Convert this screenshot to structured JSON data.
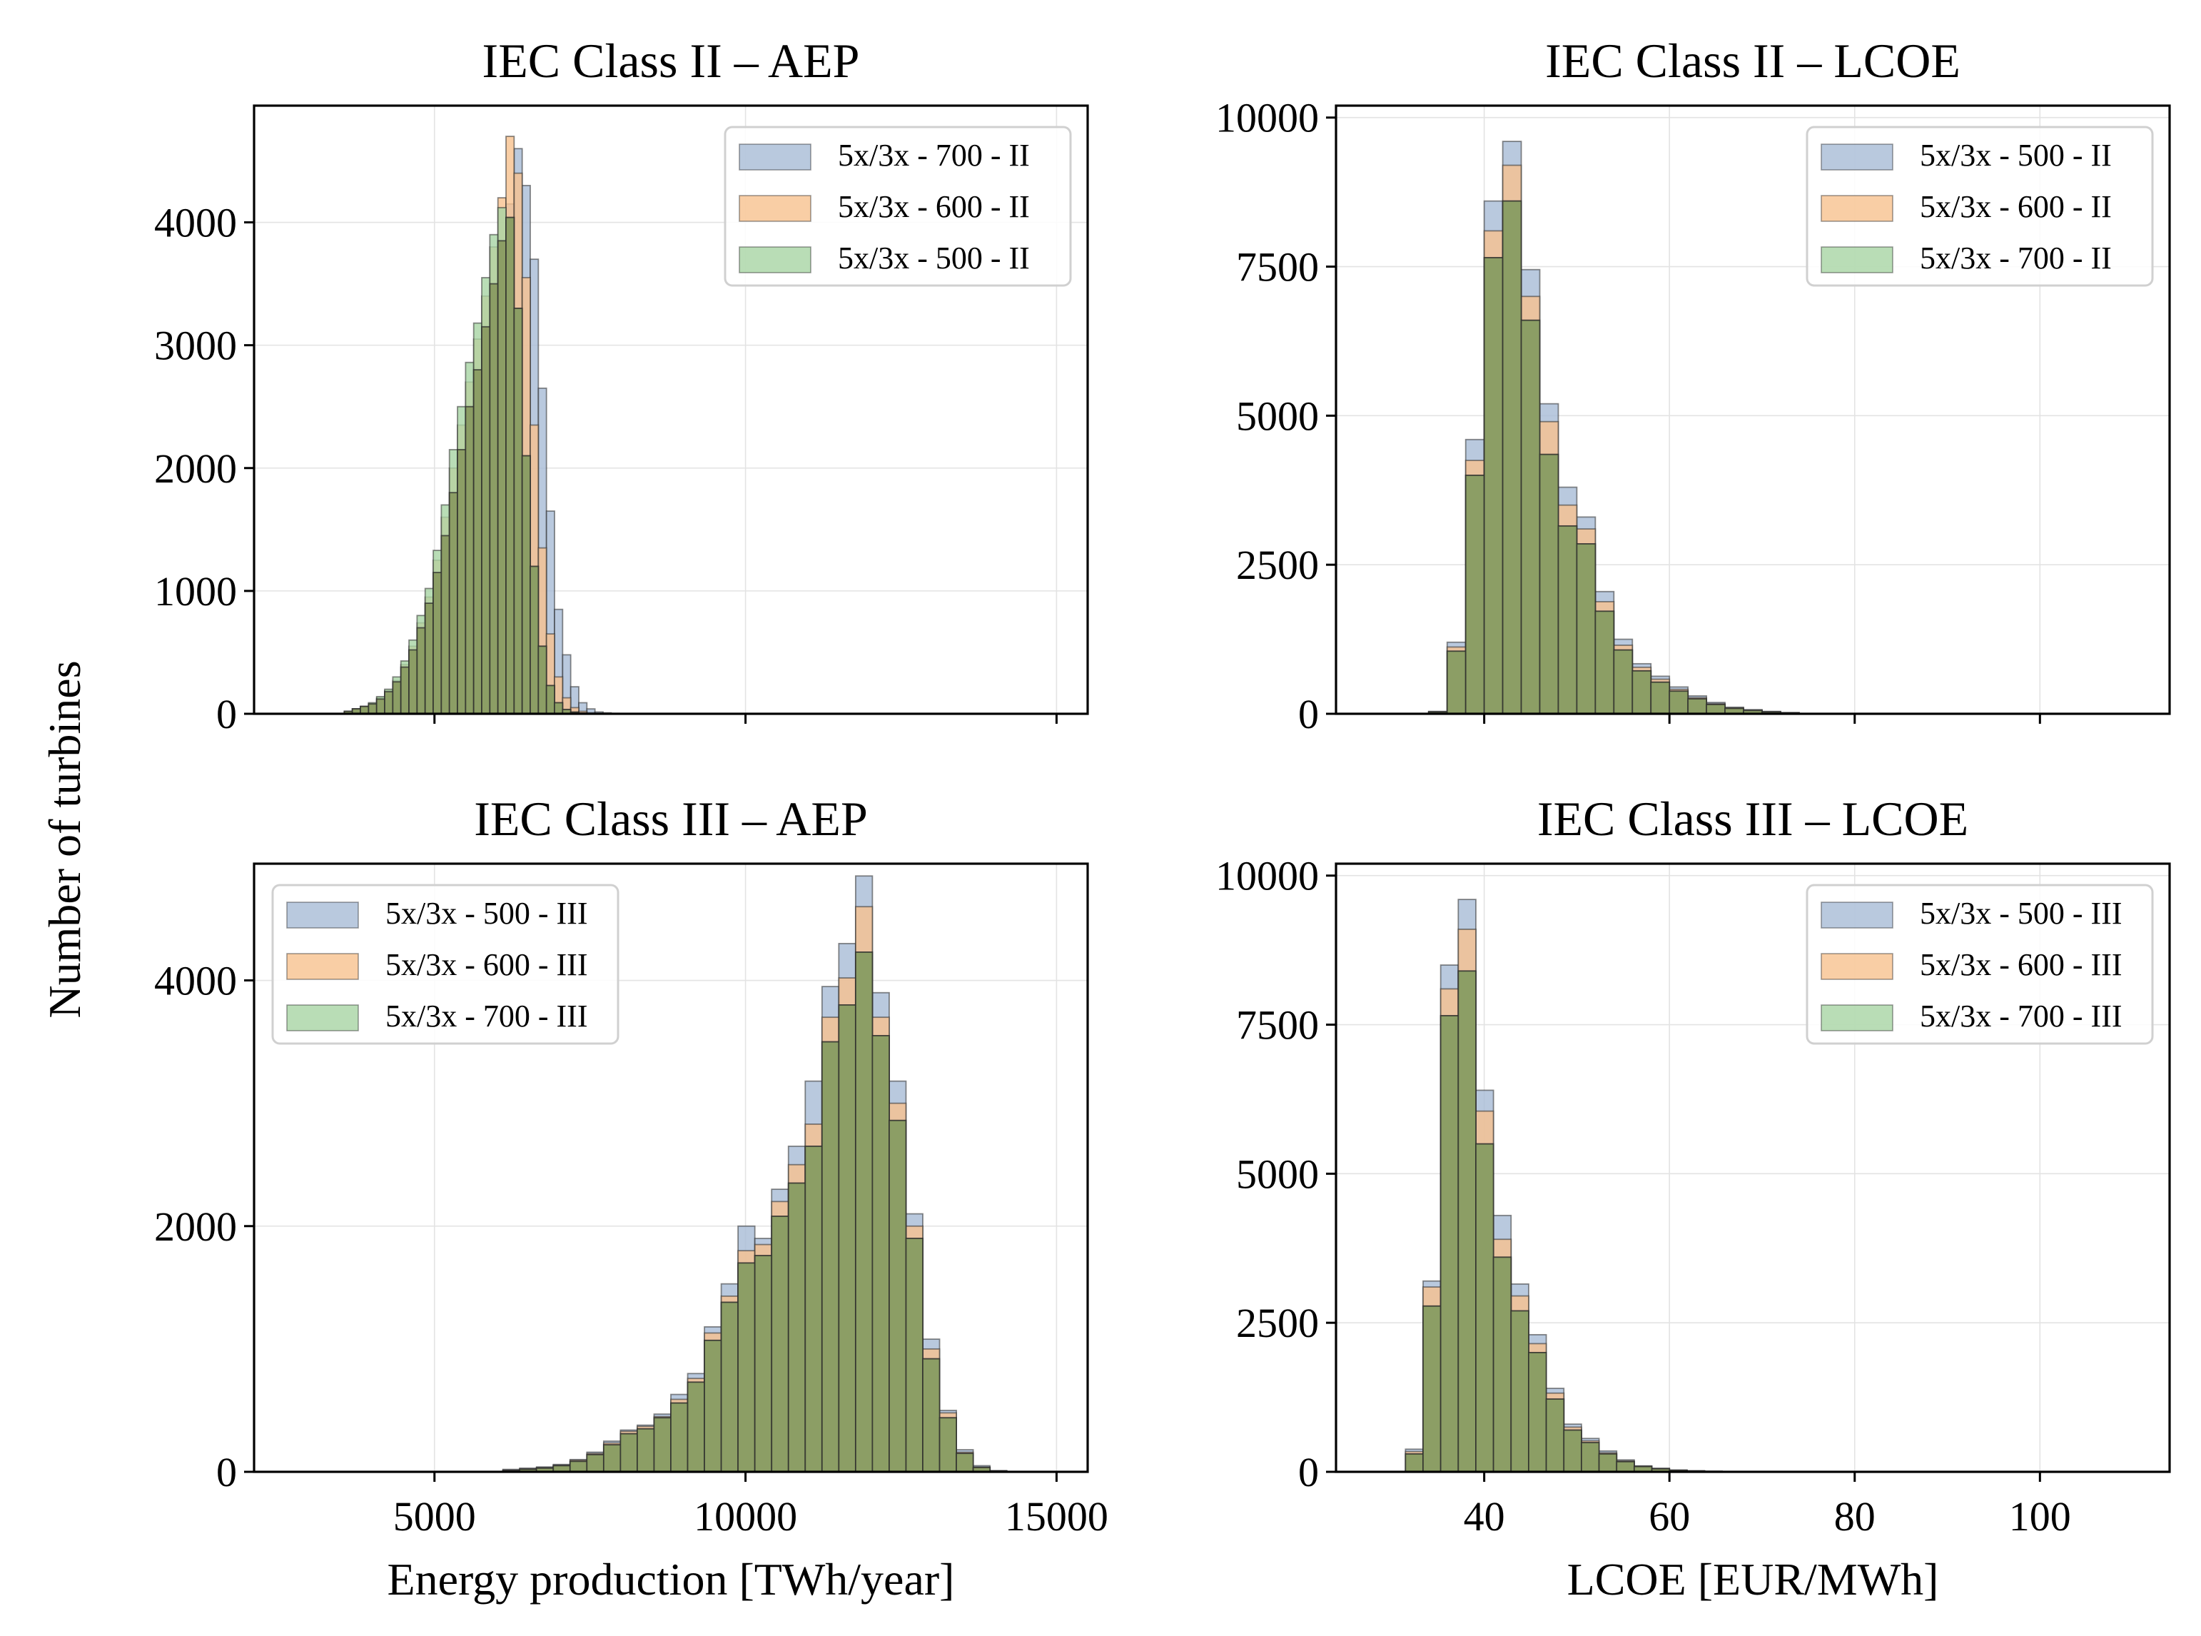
{
  "figure": {
    "ylabel": "Number of turbines",
    "colors": {
      "blue": "#a7bcd6",
      "orange": "#f7c28f",
      "green": "#a8d4a4",
      "overlap_fill": "#8a9b62",
      "bar_edge": "#2b2b2b"
    }
  },
  "chart_data": [
    {
      "id": "p1",
      "type": "histogram",
      "title": "IEC Class II – AEP",
      "xlabel": "",
      "show_xticklabels": false,
      "xlim": [
        2100,
        15500
      ],
      "ylim": [
        0,
        4950
      ],
      "xticks": [
        5000,
        10000,
        15000
      ],
      "yticks": [
        0,
        1000,
        2000,
        3000,
        4000
      ],
      "legend_position": "upper right",
      "bin_edges": [
        3550,
        3680,
        3810,
        3940,
        4070,
        4200,
        4330,
        4460,
        4590,
        4720,
        4850,
        4980,
        5110,
        5240,
        5370,
        5500,
        5630,
        5760,
        5890,
        6020,
        6150,
        6280,
        6410,
        6540,
        6670,
        6800,
        6930,
        7060,
        7190,
        7320,
        7450,
        7580,
        7710,
        7840,
        7970,
        8100,
        8230
      ],
      "series": [
        {
          "name": "5x/3x - 700 - II",
          "color": "blue",
          "values": [
            20,
            40,
            60,
            80,
            120,
            180,
            260,
            380,
            520,
            700,
            900,
            1150,
            1450,
            1800,
            2150,
            2500,
            2800,
            3150,
            3500,
            3850,
            4150,
            4600,
            4300,
            3700,
            2650,
            1650,
            850,
            480,
            220,
            90,
            40,
            15,
            8,
            4,
            2,
            1
          ]
        },
        {
          "name": "5x/3x - 600 - II",
          "color": "orange",
          "values": [
            20,
            40,
            60,
            85,
            130,
            190,
            270,
            400,
            550,
            740,
            950,
            1250,
            1600,
            2000,
            2350,
            2700,
            3050,
            3400,
            3800,
            4200,
            4700,
            4400,
            3550,
            2350,
            1350,
            650,
            300,
            130,
            50,
            20,
            8,
            4,
            2,
            1,
            0,
            0
          ]
        },
        {
          "name": "5x/3x - 500 - II",
          "color": "green",
          "values": [
            20,
            40,
            60,
            90,
            140,
            200,
            300,
            430,
            600,
            800,
            1020,
            1330,
            1700,
            2150,
            2500,
            2860,
            3180,
            3550,
            3900,
            4120,
            4040,
            3300,
            2100,
            1200,
            550,
            230,
            90,
            35,
            14,
            6,
            3,
            1,
            0,
            0,
            0,
            0
          ]
        }
      ]
    },
    {
      "id": "p2",
      "type": "histogram",
      "title": "IEC Class II – LCOE",
      "xlabel": "",
      "show_xticklabels": false,
      "xlim": [
        24,
        114
      ],
      "ylim": [
        0,
        10200
      ],
      "xticks": [
        40,
        60,
        80,
        100
      ],
      "yticks": [
        0,
        2500,
        5000,
        7500,
        10000
      ],
      "legend_position": "upper right",
      "bin_edges": [
        34,
        36,
        38,
        40,
        42,
        44,
        46,
        48,
        50,
        52,
        54,
        56,
        58,
        60,
        62,
        64,
        66,
        68,
        70,
        72,
        74
      ],
      "series": [
        {
          "name": "5x/3x - 500 - II",
          "color": "blue",
          "values": [
            40,
            1200,
            4600,
            8600,
            9600,
            7450,
            5200,
            3800,
            3300,
            2050,
            1250,
            840,
            630,
            450,
            300,
            190,
            110,
            70,
            40,
            20
          ]
        },
        {
          "name": "5x/3x - 600 - II",
          "color": "orange",
          "values": [
            35,
            1120,
            4250,
            8100,
            9200,
            7000,
            4900,
            3500,
            3100,
            1880,
            1150,
            780,
            580,
            410,
            270,
            170,
            100,
            60,
            35,
            18
          ]
        },
        {
          "name": "5x/3x - 700 - II",
          "color": "green",
          "values": [
            30,
            1050,
            4000,
            7650,
            8600,
            6600,
            4350,
            3150,
            2850,
            1720,
            1070,
            720,
            530,
            380,
            250,
            155,
            90,
            55,
            30,
            15
          ]
        }
      ]
    },
    {
      "id": "p3",
      "type": "histogram",
      "title": "IEC Class III – AEP",
      "xlabel": "Energy production [TWh/year]",
      "show_xticklabels": true,
      "xlim": [
        2100,
        15500
      ],
      "ylim": [
        0,
        4950
      ],
      "xticks": [
        5000,
        10000,
        15000
      ],
      "yticks": [
        0,
        2000,
        4000
      ],
      "legend_position": "upper left",
      "bin_edges": [
        6100,
        6370,
        6640,
        6910,
        7180,
        7450,
        7720,
        7990,
        8260,
        8530,
        8800,
        9070,
        9340,
        9610,
        9880,
        10150,
        10420,
        10690,
        10960,
        11230,
        11500,
        11770,
        12040,
        12310,
        12580,
        12850,
        13120,
        13390,
        13660,
        13930,
        14200
      ],
      "series": [
        {
          "name": "5x/3x - 500 - III",
          "color": "blue",
          "values": [
            20,
            30,
            40,
            60,
            100,
            160,
            250,
            340,
            380,
            470,
            630,
            800,
            1180,
            1530,
            2000,
            1900,
            2300,
            2650,
            3180,
            3950,
            4300,
            4850,
            3900,
            3180,
            2100,
            1080,
            500,
            180,
            50,
            10
          ]
        },
        {
          "name": "5x/3x - 600 - III",
          "color": "orange",
          "values": [
            15,
            25,
            35,
            55,
            95,
            150,
            235,
            330,
            370,
            450,
            590,
            760,
            1130,
            1430,
            1800,
            1850,
            2200,
            2500,
            2830,
            3700,
            4020,
            4600,
            3700,
            3000,
            2000,
            1000,
            480,
            160,
            40,
            8
          ]
        },
        {
          "name": "5x/3x - 700 - III",
          "color": "green",
          "values": [
            10,
            20,
            30,
            50,
            85,
            140,
            220,
            310,
            350,
            440,
            560,
            730,
            1070,
            1380,
            1700,
            1760,
            2080,
            2350,
            2650,
            3500,
            3800,
            4230,
            3550,
            2860,
            1900,
            920,
            440,
            150,
            35,
            6
          ]
        }
      ]
    },
    {
      "id": "p4",
      "type": "histogram",
      "title": "IEC Class III – LCOE",
      "xlabel": "LCOE [EUR/MWh]",
      "show_xticklabels": true,
      "xlim": [
        24,
        114
      ],
      "ylim": [
        0,
        10200
      ],
      "xticks": [
        40,
        60,
        80,
        100
      ],
      "yticks": [
        0,
        2500,
        5000,
        7500,
        10000
      ],
      "legend_position": "upper right",
      "bin_edges": [
        31.5,
        33.4,
        35.3,
        37.2,
        39.1,
        41.0,
        42.9,
        44.8,
        46.7,
        48.6,
        50.5,
        52.4,
        54.3,
        56.2,
        58.1,
        60.0,
        61.9,
        63.8,
        65.7,
        67.6,
        69.5
      ],
      "series": [
        {
          "name": "5x/3x - 500 - III",
          "color": "blue",
          "values": [
            380,
            3200,
            8500,
            9600,
            6400,
            4300,
            3150,
            2300,
            1400,
            800,
            560,
            350,
            200,
            100,
            60,
            30,
            18,
            10,
            5,
            2
          ]
        },
        {
          "name": "5x/3x - 600 - III",
          "color": "orange",
          "values": [
            340,
            3100,
            8100,
            9100,
            6050,
            3900,
            2950,
            2150,
            1320,
            750,
            520,
            320,
            185,
            95,
            55,
            28,
            16,
            9,
            4,
            2
          ]
        },
        {
          "name": "5x/3x - 700 - III",
          "color": "green",
          "values": [
            300,
            2780,
            7650,
            8400,
            5500,
            3600,
            2700,
            2000,
            1220,
            700,
            490,
            300,
            170,
            88,
            50,
            25,
            14,
            8,
            3,
            1
          ]
        }
      ]
    }
  ]
}
